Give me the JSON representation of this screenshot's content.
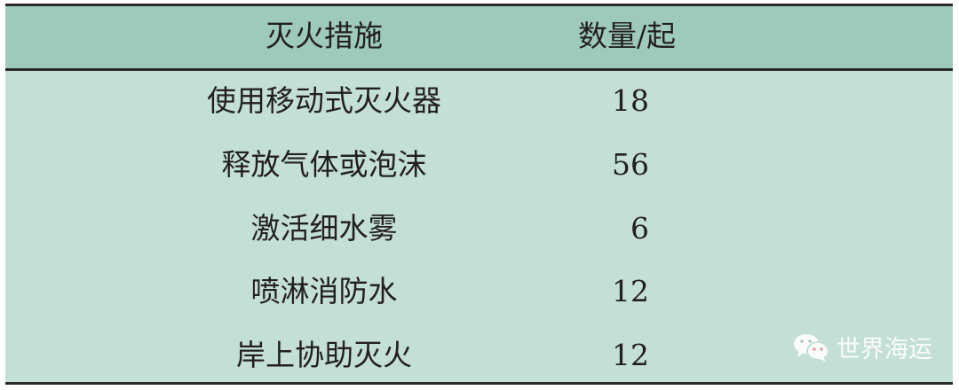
{
  "table": {
    "headers": [
      "灭火措施",
      "数量/起"
    ],
    "rows": [
      {
        "measure": "使用移动式灭火器",
        "count": "18"
      },
      {
        "measure": "释放气体或泡沫",
        "count": "56"
      },
      {
        "measure": "激活细水雾",
        "count": "6"
      },
      {
        "measure": "喷淋消防水",
        "count": "12"
      },
      {
        "measure": "岸上协助灭火",
        "count": "12"
      }
    ]
  },
  "watermark": {
    "text": "世界海运",
    "icon": "wechat-icon"
  },
  "colors": {
    "header_bg": "#9dcab9",
    "body_bg": "#c4e0d6",
    "rule": "#2a2a2a"
  }
}
